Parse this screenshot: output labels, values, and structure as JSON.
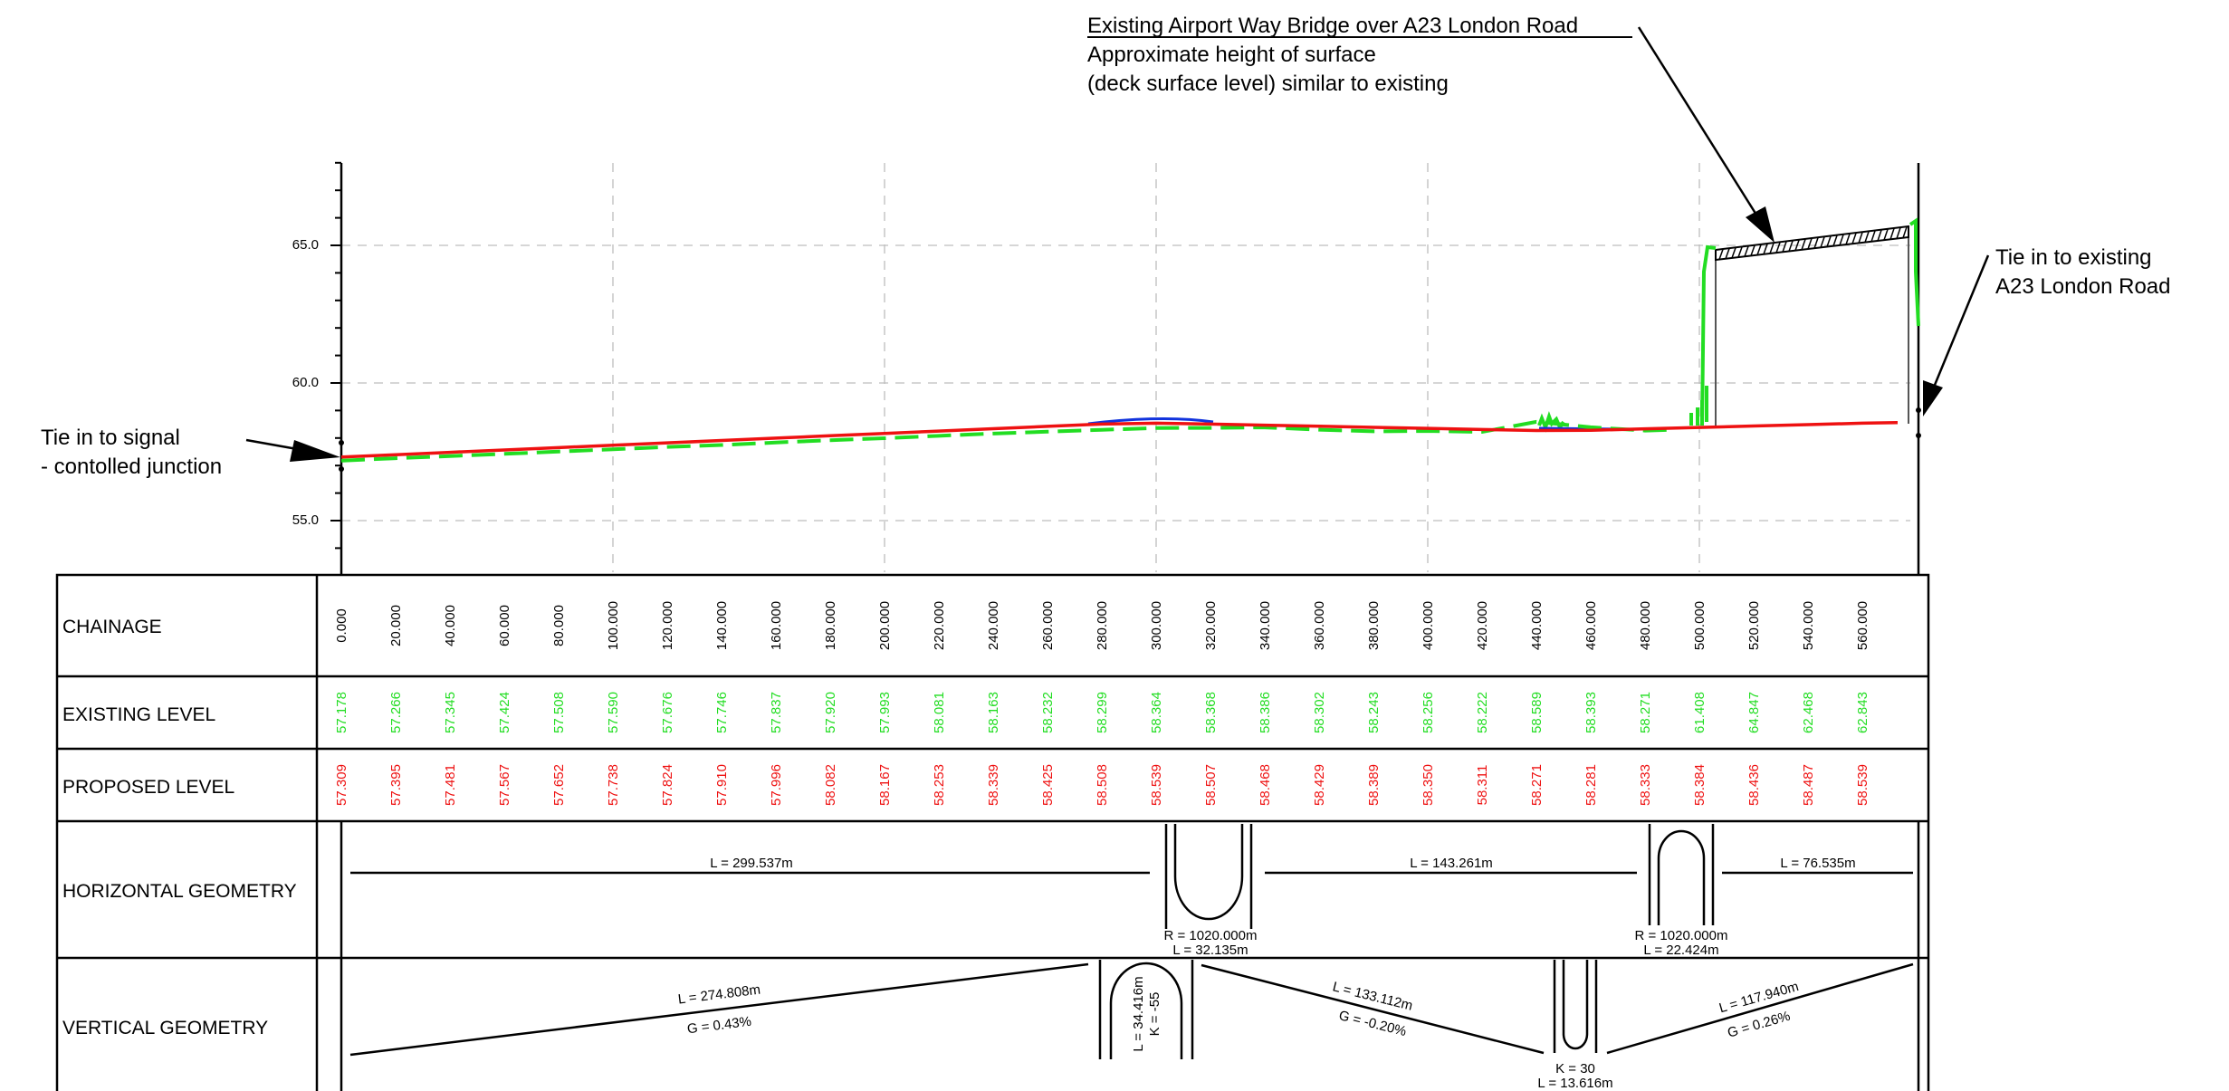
{
  "colors": {
    "existing": "#22dd22",
    "proposed": "#ee1111",
    "blue": "#1133dd",
    "ink": "#000000",
    "grid": "#bdbdbd"
  },
  "annotations": {
    "bridge_title": "Existing Airport Way Bridge over A23 London Road",
    "bridge_line2": "Approximate height of surface",
    "bridge_line3": "(deck surface level) similar to existing",
    "left_line1": "Tie in to signal",
    "left_line2": "- contolled junction",
    "right_line1": "Tie in to existing",
    "right_line2": "A23 London Road"
  },
  "table": {
    "row_labels": [
      "CHAINAGE",
      "EXISTING LEVEL",
      "PROPOSED LEVEL",
      "HORIZONTAL GEOMETRY",
      "VERTICAL GEOMETRY"
    ],
    "chainage": [
      "0.000",
      "20.000",
      "40.000",
      "60.000",
      "80.000",
      "100.000",
      "120.000",
      "140.000",
      "160.000",
      "180.000",
      "200.000",
      "220.000",
      "240.000",
      "260.000",
      "280.000",
      "300.000",
      "320.000",
      "340.000",
      "360.000",
      "380.000",
      "400.000",
      "420.000",
      "440.000",
      "460.000",
      "480.000",
      "500.000",
      "520.000",
      "540.000",
      "560.000"
    ],
    "existing": [
      "57.178",
      "57.266",
      "57.345",
      "57.424",
      "57.508",
      "57.590",
      "57.676",
      "57.746",
      "57.837",
      "57.920",
      "57.993",
      "58.081",
      "58.163",
      "58.232",
      "58.299",
      "58.364",
      "58.368",
      "58.386",
      "58.302",
      "58.243",
      "58.256",
      "58.222",
      "58.589",
      "58.393",
      "58.271",
      "61.408",
      "64.847",
      "62.468",
      "62.843"
    ],
    "proposed": [
      "57.309",
      "57.395",
      "57.481",
      "57.567",
      "57.652",
      "57.738",
      "57.824",
      "57.910",
      "57.996",
      "58.082",
      "58.167",
      "58.253",
      "58.339",
      "58.425",
      "58.508",
      "58.539",
      "58.507",
      "58.468",
      "58.429",
      "58.389",
      "58.350",
      "58.311",
      "58.271",
      "58.281",
      "58.333",
      "58.384",
      "58.436",
      "58.487",
      "58.539"
    ]
  },
  "horizontal_geometry": {
    "straight1": "L = 299.537m",
    "curve1_r": "R = 1020.000m",
    "curve1_l": "L = 32.135m",
    "straight2": "L = 143.261m",
    "curve2_r": "R = 1020.000m",
    "curve2_l": "L = 22.424m",
    "straight3": "L = 76.535m"
  },
  "vertical_geometry": {
    "grade1_l": "L = 274.808m",
    "grade1_g": "G = 0.43%",
    "crest_l": "L = 34.416m",
    "crest_k": "K = -55",
    "grade2_l": "L = 133.112m",
    "grade2_g": "G = -0.20%",
    "sag_k": "K = 30",
    "sag_l": "L = 13.616m",
    "grade3_l": "L = 117.940m",
    "grade3_g": "G = 0.26%"
  },
  "chart_data": {
    "type": "line",
    "ylim": [
      53.0,
      68.0
    ],
    "xlim": [
      0,
      573
    ],
    "y_ticks": [
      "55.0",
      "60.0",
      "65.0"
    ],
    "x": [
      0,
      20,
      40,
      60,
      80,
      100,
      120,
      140,
      160,
      180,
      200,
      220,
      240,
      260,
      280,
      300,
      320,
      340,
      360,
      380,
      400,
      420,
      440,
      460,
      480,
      500,
      520,
      540,
      560
    ],
    "series": [
      {
        "name": "EXISTING LEVEL",
        "values": [
          57.178,
          57.266,
          57.345,
          57.424,
          57.508,
          57.59,
          57.676,
          57.746,
          57.837,
          57.92,
          57.993,
          58.081,
          58.163,
          58.232,
          58.299,
          58.364,
          58.368,
          58.386,
          58.302,
          58.243,
          58.256,
          58.222,
          58.589,
          58.393,
          58.271,
          61.408,
          64.847,
          62.468,
          62.843
        ]
      },
      {
        "name": "PROPOSED LEVEL",
        "values": [
          57.309,
          57.395,
          57.481,
          57.567,
          57.652,
          57.738,
          57.824,
          57.91,
          57.996,
          58.082,
          58.167,
          58.253,
          58.339,
          58.425,
          58.508,
          58.539,
          58.507,
          58.468,
          58.429,
          58.389,
          58.35,
          58.311,
          58.271,
          58.281,
          58.333,
          58.384,
          58.436,
          58.487,
          58.539
        ]
      }
    ]
  }
}
